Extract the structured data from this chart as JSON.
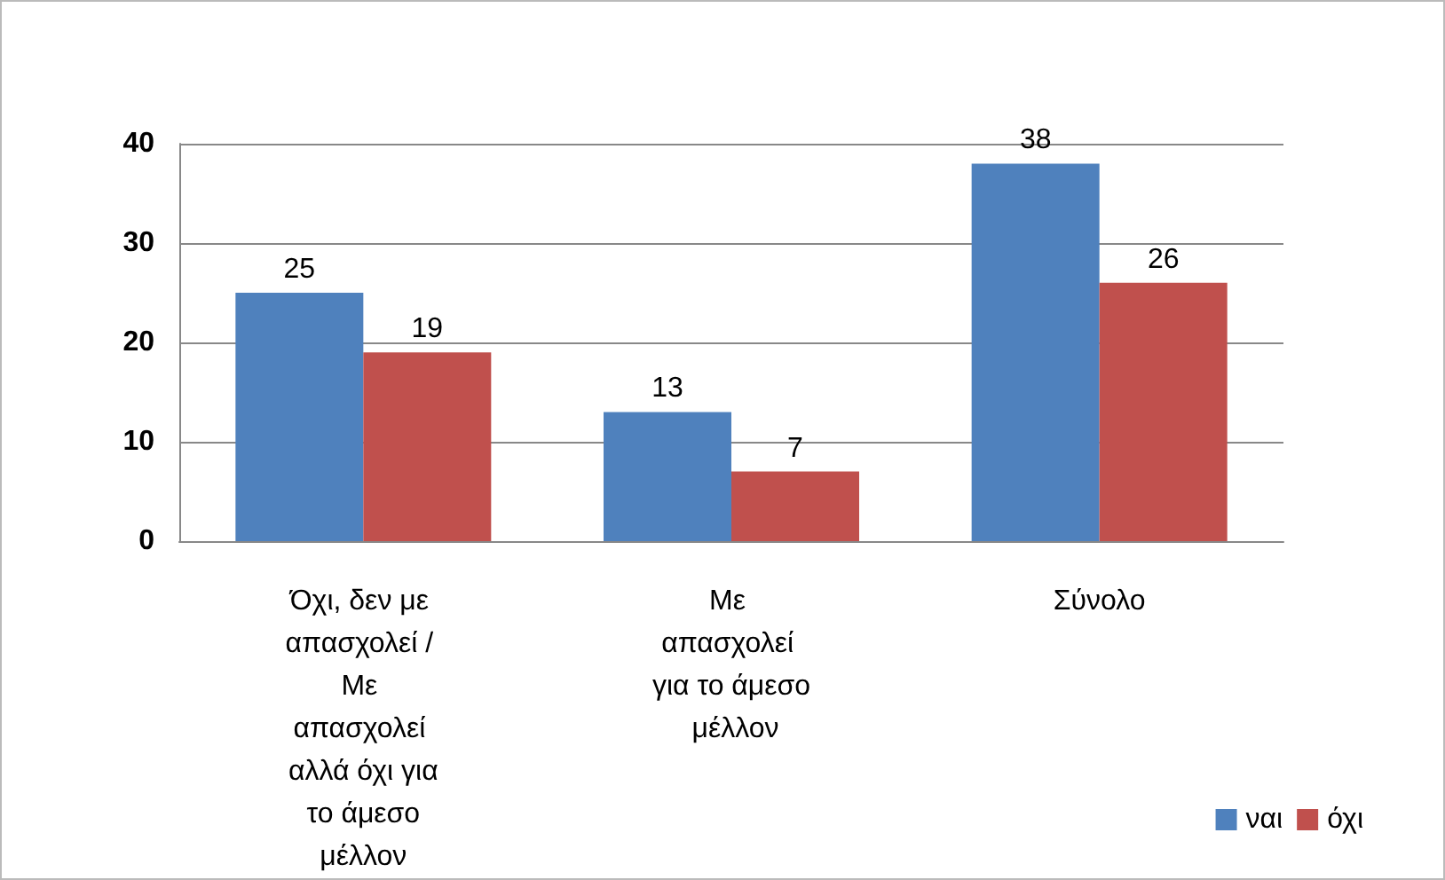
{
  "chart_data": {
    "type": "bar",
    "categories": [
      "Όχι, δεν με απασχολεί / Με απασχολεί αλλά όχι για το άμεσο μέλλον",
      "Με απασχολεί για το άμεσο μέλλον",
      "Σύνολο"
    ],
    "series": [
      {
        "name": "ναι",
        "color": "#4f81bd",
        "values": [
          25,
          13,
          38
        ]
      },
      {
        "name": "όχι",
        "color": "#c0504d",
        "values": [
          19,
          7,
          26
        ]
      }
    ],
    "ylim": [
      0,
      40
    ],
    "yticks": [
      0,
      10,
      20,
      30,
      40
    ],
    "grid": "y",
    "legend": "bottom right",
    "data_labels": true
  }
}
